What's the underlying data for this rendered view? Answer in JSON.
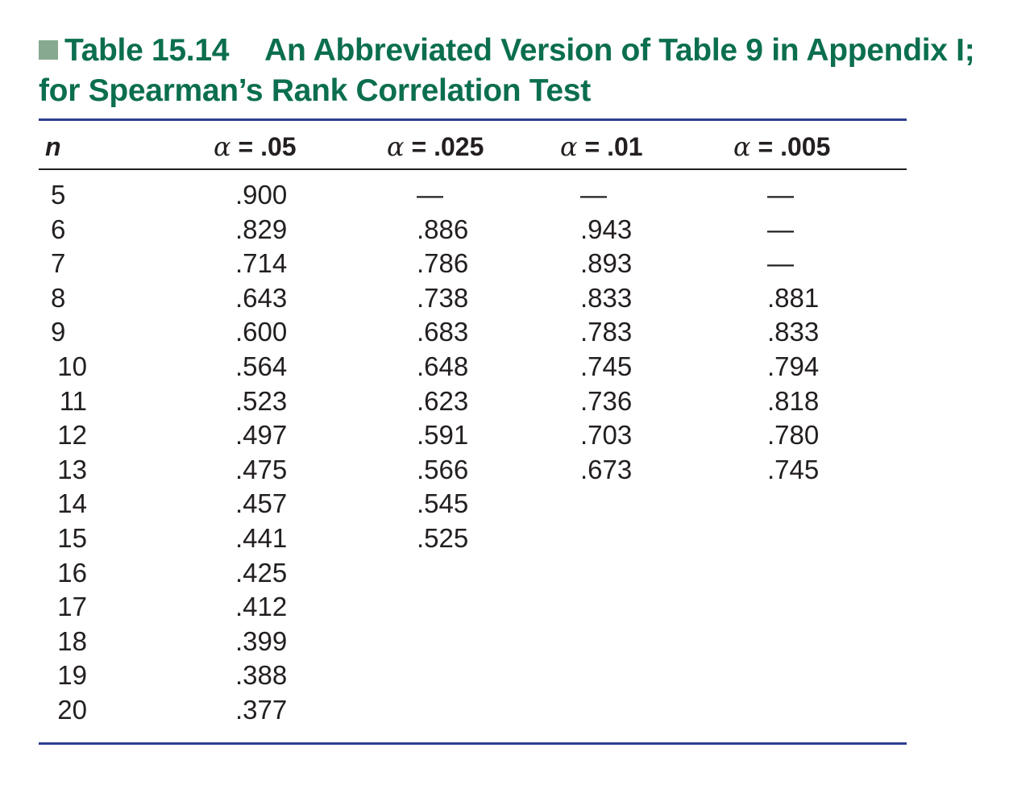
{
  "caption": {
    "label": "Table 15.14",
    "title_line1": "An Abbreviated Version of Table 9 in Appendix I;",
    "title_line2": "for Spearman’s Rank Correlation Test"
  },
  "table": {
    "headers": {
      "n": "n",
      "alpha_symbol": "α",
      "a05": "= .05",
      "a025": "= .025",
      "a01": "= .01",
      "a005": "= .005"
    },
    "rows": [
      {
        "n": "5",
        "a05": ".900",
        "a025": "—",
        "a01": "—",
        "a005": "—"
      },
      {
        "n": "6",
        "a05": ".829",
        "a025": ".886",
        "a01": ".943",
        "a005": "—"
      },
      {
        "n": "7",
        "a05": ".714",
        "a025": ".786",
        "a01": ".893",
        "a005": "—"
      },
      {
        "n": "8",
        "a05": ".643",
        "a025": ".738",
        "a01": ".833",
        "a005": ".881"
      },
      {
        "n": "9",
        "a05": ".600",
        "a025": ".683",
        "a01": ".783",
        "a005": ".833"
      },
      {
        "n": "10",
        "a05": ".564",
        "a025": ".648",
        "a01": ".745",
        "a005": ".794"
      },
      {
        "n": "11",
        "a05": ".523",
        "a025": ".623",
        "a01": ".736",
        "a005": ".818"
      },
      {
        "n": "12",
        "a05": ".497",
        "a025": ".591",
        "a01": ".703",
        "a005": ".780"
      },
      {
        "n": "13",
        "a05": ".475",
        "a025": ".566",
        "a01": ".673",
        "a005": ".745"
      },
      {
        "n": "14",
        "a05": ".457",
        "a025": ".545",
        "a01": "",
        "a005": ""
      },
      {
        "n": "15",
        "a05": ".441",
        "a025": ".525",
        "a01": "",
        "a005": ""
      },
      {
        "n": "16",
        "a05": ".425",
        "a025": "",
        "a01": "",
        "a005": ""
      },
      {
        "n": "17",
        "a05": ".412",
        "a025": "",
        "a01": "",
        "a005": ""
      },
      {
        "n": "18",
        "a05": ".399",
        "a025": "",
        "a01": "",
        "a005": ""
      },
      {
        "n": "19",
        "a05": ".388",
        "a025": "",
        "a01": "",
        "a005": ""
      },
      {
        "n": "20",
        "a05": ".377",
        "a025": "",
        "a01": "",
        "a005": ""
      }
    ]
  },
  "colors": {
    "title": "#0b6e4f",
    "marker": "#86a98f",
    "rule": "#2e3f8f"
  }
}
